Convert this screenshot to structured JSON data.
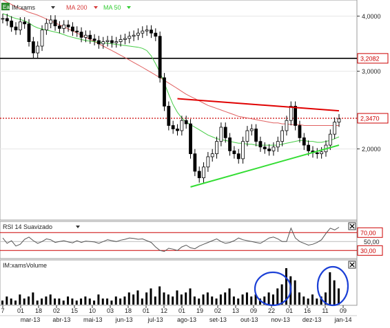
{
  "chart_data": {
    "type": "line",
    "symbol": "IM:xams",
    "legend": [
      {
        "label": "IM:xams",
        "color": "#000000"
      },
      {
        "label": "MA 200",
        "color": "#d63b3b"
      },
      {
        "label": "MA 50",
        "color": "#33cc33"
      }
    ],
    "price_axis": {
      "ticks": [
        "4,0000",
        "3,0000",
        "2,0000"
      ],
      "tick_values": [
        4.0,
        3.0,
        2.0
      ],
      "ylim": [
        1.38,
        4.35
      ],
      "scale": "log"
    },
    "levels": [
      {
        "label": "3,2082",
        "value": 3.2082,
        "style": "solid",
        "color": "#000000"
      },
      {
        "label": "2,3470",
        "value": 2.347,
        "style": "dotted",
        "color": "#cc0000"
      }
    ],
    "trendlines": [
      {
        "name": "resistance",
        "color": "#e00000",
        "x0": 40,
        "y0": 2.6,
        "x1": 77,
        "y1": 2.44
      },
      {
        "name": "support",
        "color": "#33dd33",
        "x0": 43,
        "y0": 1.64,
        "x1": 77,
        "y1": 2.04
      }
    ],
    "price": [
      3.95,
      3.9,
      3.78,
      3.72,
      3.88,
      3.84,
      3.5,
      3.3,
      3.42,
      3.72,
      3.85,
      3.92,
      3.8,
      3.75,
      3.82,
      3.78,
      3.7,
      3.68,
      3.58,
      3.62,
      3.55,
      3.52,
      3.46,
      3.5,
      3.52,
      3.48,
      3.5,
      3.54,
      3.56,
      3.6,
      3.62,
      3.66,
      3.7,
      3.72,
      3.66,
      3.6,
      2.9,
      2.5,
      2.26,
      2.22,
      2.2,
      2.32,
      2.28,
      1.95,
      1.78,
      1.72,
      1.82,
      1.92,
      1.95,
      2.08,
      2.24,
      2.12,
      1.98,
      1.95,
      1.9,
      2.08,
      2.2,
      2.22,
      2.08,
      2.02,
      2.0,
      1.98,
      2.02,
      2.08,
      2.2,
      2.32,
      2.5,
      2.26,
      2.12,
      2.04,
      1.98,
      1.96,
      1.95,
      1.97,
      2.04,
      2.16,
      2.3,
      2.34
    ],
    "ma50": [
      4.05,
      4.02,
      3.98,
      3.95,
      3.93,
      3.9,
      3.86,
      3.8,
      3.76,
      3.74,
      3.72,
      3.7,
      3.68,
      3.66,
      3.63,
      3.6,
      3.58,
      3.56,
      3.54,
      3.52,
      3.51,
      3.5,
      3.49,
      3.48,
      3.47,
      3.46,
      3.45,
      3.44,
      3.43,
      3.42,
      3.41,
      3.4,
      3.38,
      3.34,
      3.25,
      3.12,
      2.98,
      2.82,
      2.66,
      2.52,
      2.42,
      2.35,
      2.3,
      2.27,
      2.24,
      2.21,
      2.18,
      2.15,
      2.13,
      2.11,
      2.1,
      2.09,
      2.08,
      2.07,
      2.06,
      2.06,
      2.05,
      2.05,
      2.04,
      2.04,
      2.04,
      2.04,
      2.04,
      2.04,
      2.05,
      2.06,
      2.07,
      2.08,
      2.09,
      2.09,
      2.08,
      2.08,
      2.07,
      2.07,
      2.08,
      2.09,
      2.11,
      2.13
    ],
    "ma200": [
      4.35,
      4.3,
      4.25,
      4.2,
      4.16,
      4.12,
      4.08,
      4.05,
      4.02,
      3.98,
      3.94,
      3.9,
      3.86,
      3.82,
      3.78,
      3.74,
      3.7,
      3.66,
      3.62,
      3.58,
      3.54,
      3.5,
      3.46,
      3.42,
      3.38,
      3.34,
      3.3,
      3.26,
      3.22,
      3.18,
      3.14,
      3.1,
      3.06,
      3.02,
      2.98,
      2.94,
      2.9,
      2.86,
      2.82,
      2.78,
      2.74,
      2.7,
      2.66,
      2.63,
      2.6,
      2.57,
      2.54,
      2.51,
      2.49,
      2.47,
      2.45,
      2.43,
      2.41,
      2.39,
      2.37,
      2.36,
      2.35,
      2.34,
      2.33,
      2.32,
      2.31,
      2.3,
      2.29,
      2.29,
      2.28,
      2.28,
      2.27,
      2.27,
      2.27,
      2.26,
      2.26,
      2.26,
      2.26,
      2.26,
      2.26,
      2.26,
      2.26,
      2.26
    ],
    "rsi": {
      "title": "RSI 14 Suavizado",
      "ticks": [
        "70,00",
        "50,00",
        "30,00"
      ],
      "tick_values": [
        70,
        50,
        30
      ],
      "ylim": [
        12,
        95
      ],
      "values": [
        58,
        46,
        52,
        40,
        44,
        55,
        60,
        52,
        46,
        50,
        56,
        54,
        48,
        50,
        52,
        49,
        47,
        52,
        48,
        51,
        50,
        49,
        46,
        50,
        54,
        52,
        50,
        53,
        55,
        58,
        57,
        55,
        56,
        52,
        48,
        38,
        30,
        28,
        35,
        33,
        30,
        38,
        42,
        36,
        34,
        40,
        44,
        48,
        52,
        56,
        50,
        46,
        48,
        52,
        58,
        54,
        52,
        50,
        48,
        46,
        52,
        58,
        60,
        56,
        50,
        50,
        80,
        58,
        50,
        46,
        42,
        44,
        48,
        54,
        68,
        80,
        76,
        82
      ]
    },
    "volume": {
      "title": "IM:xamsVolume",
      "values": [
        2,
        4,
        3,
        2,
        5,
        3,
        4,
        6,
        2,
        3,
        4,
        5,
        3,
        3,
        2,
        4,
        3,
        2,
        3,
        4,
        3,
        2,
        5,
        3,
        3,
        2,
        4,
        3,
        4,
        6,
        5,
        7,
        3,
        6,
        8,
        4,
        9,
        6,
        5,
        4,
        7,
        5,
        6,
        8,
        4,
        3,
        5,
        6,
        4,
        3,
        5,
        6,
        8,
        4,
        3,
        5,
        6,
        4,
        5,
        3,
        4,
        6,
        5,
        8,
        10,
        18,
        14,
        12,
        6,
        4,
        3,
        5,
        3,
        4,
        6,
        16,
        12,
        8
      ]
    },
    "x_axis": {
      "day_ticks": [
        "7",
        "01",
        "18",
        "02",
        "15",
        "10",
        "03",
        "18",
        "01",
        "12",
        "01",
        "19",
        "02",
        "13",
        "09",
        "22",
        "01",
        "16",
        "11",
        "09"
      ],
      "month_ticks": [
        "mar-13",
        "abr-13",
        "mai-13",
        "jun-13",
        "jul-13",
        "ago-13",
        "set-13",
        "out-13",
        "nov-13",
        "dez-13",
        "jan-14"
      ]
    },
    "rsi_zone_labels": [
      "70,00",
      "30,00"
    ],
    "annotations": [
      "volume-spike-circle-nov",
      "volume-spike-circle-jan"
    ]
  },
  "ui": {
    "close_icon_rsi": "close-icon",
    "close_icon_volume": "close-icon",
    "dropdown_icon": "triangle-down-icon",
    "symbol_icon": "Ea"
  },
  "colors": {
    "price": "#000000",
    "ma200": "#e06060",
    "ma50": "#44cc44",
    "resistance": "#e00000",
    "support": "#33dd33",
    "level_solid": "#000000",
    "level_dotted": "#cc0000",
    "rsi": "#555555",
    "volume": "#000000",
    "annotation": "#1a3fd6",
    "tag_red": "#cc0000"
  }
}
